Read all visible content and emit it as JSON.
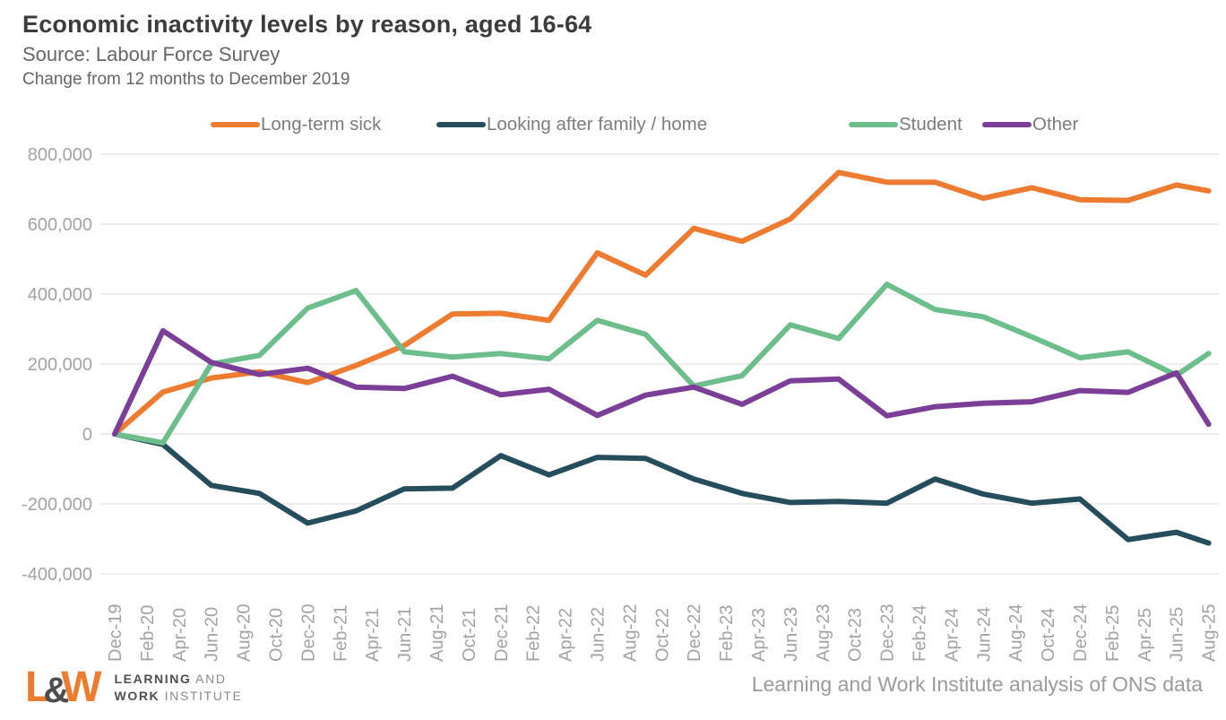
{
  "header": {
    "title": "Economic inactivity levels by reason, aged 16-64",
    "source": "Source: Labour Force Survey",
    "subtitle": "Change from 12 months to December 2019"
  },
  "chart_data": {
    "type": "line",
    "title": "Economic inactivity levels by reason, aged 16-64",
    "xlabel": "",
    "ylabel": "",
    "ylim": [
      -400000,
      800000
    ],
    "y_ticks": [
      800000,
      600000,
      400000,
      200000,
      0,
      -200000,
      -400000
    ],
    "grid": "horizontal",
    "legend_position": "top",
    "x_unit": "months since Dec-2019, quarterly data points",
    "x_months": [
      0,
      3,
      6,
      9,
      12,
      15,
      18,
      21,
      24,
      27,
      30,
      33,
      36,
      39,
      42,
      45,
      48,
      51,
      54,
      57,
      60,
      63,
      66,
      68
    ],
    "x_tick_months": [
      0,
      2,
      4,
      6,
      8,
      10,
      12,
      14,
      16,
      18,
      20,
      22,
      24,
      26,
      28,
      30,
      32,
      34,
      36,
      38,
      40,
      42,
      44,
      46,
      48,
      50,
      52,
      54,
      56,
      58,
      60,
      62,
      64,
      66,
      68
    ],
    "x_tick_labels": [
      "Dec-19",
      "Feb-20",
      "Apr-20",
      "Jun-20",
      "Aug-20",
      "Oct-20",
      "Dec-20",
      "Feb-21",
      "Apr-21",
      "Jun-21",
      "Aug-21",
      "Oct-21",
      "Dec-21",
      "Feb-22",
      "Apr-22",
      "Jun-22",
      "Aug-22",
      "Oct-22",
      "Dec-22",
      "Feb-23",
      "Apr-23",
      "Jun-23",
      "Aug-23",
      "Oct-23",
      "Dec-23",
      "Feb-24",
      "Apr-24",
      "Jun-24",
      "Aug-24",
      "Oct-24",
      "Dec-24",
      "Feb-25",
      "Apr-25",
      "Jun-25",
      "Aug-25"
    ],
    "series": [
      {
        "name": "Long-term sick",
        "color": "#ed7b30",
        "values": [
          0,
          120000,
          160000,
          178000,
          147000,
          196000,
          253000,
          343000,
          345000,
          325000,
          518000,
          454000,
          588000,
          551000,
          615000,
          748000,
          720000,
          720000,
          674000,
          704000,
          670000,
          668000,
          712000,
          695000
        ]
      },
      {
        "name": "Looking after family / home",
        "color": "#264d5c",
        "values": [
          0,
          -30000,
          -147000,
          -170000,
          -255000,
          -220000,
          -157000,
          -155000,
          -62000,
          -117000,
          -67000,
          -70000,
          -129000,
          -170000,
          -196000,
          -193000,
          -198000,
          -129000,
          -172000,
          -198000,
          -186000,
          -302000,
          -281000,
          -312000
        ]
      },
      {
        "name": "Student",
        "color": "#6ebe8d",
        "values": [
          0,
          -25000,
          200000,
          225000,
          360000,
          410000,
          235000,
          220000,
          230000,
          215000,
          325000,
          285000,
          137000,
          167000,
          312000,
          273000,
          428000,
          356000,
          335000,
          278000,
          218000,
          235000,
          168000,
          230000
        ]
      },
      {
        "name": "Other",
        "color": "#7c3f97",
        "values": [
          0,
          295000,
          205000,
          170000,
          188000,
          134000,
          130000,
          165000,
          112000,
          128000,
          53000,
          111000,
          134000,
          85000,
          152000,
          157000,
          52000,
          78000,
          88000,
          92000,
          124000,
          119000,
          175000,
          28000
        ]
      }
    ]
  },
  "footer": {
    "note": "Learning and Work Institute analysis of ONS data",
    "logo": {
      "mark_l": "L",
      "mark_amp": "&",
      "mark_w": "W",
      "line1_strong": "LEARNING",
      "line1_light": "AND",
      "line2_strong": "WORK",
      "line2_light": "INSTITUTE"
    }
  }
}
